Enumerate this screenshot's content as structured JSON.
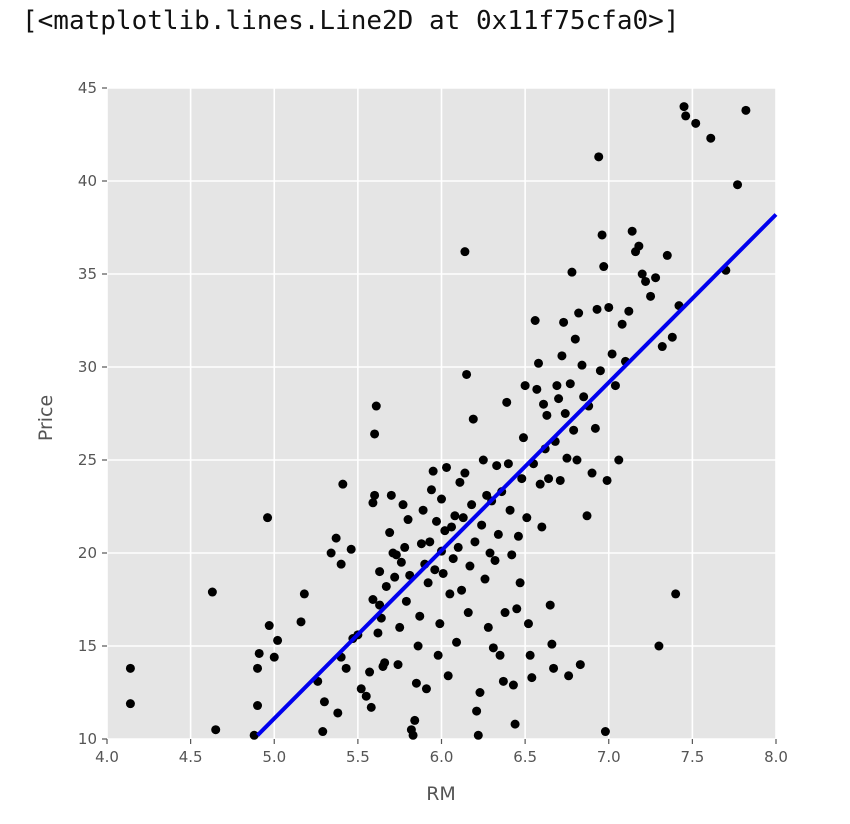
{
  "output": {
    "repr": "[<matplotlib.lines.Line2D at 0x11f75cfa0>]"
  },
  "chart_data": {
    "type": "scatter",
    "title": "",
    "xlabel": "RM",
    "ylabel": "Price",
    "xlim": [
      4.0,
      8.0
    ],
    "ylim": [
      10,
      45
    ],
    "xticks": [
      4.0,
      4.5,
      5.0,
      5.5,
      6.0,
      6.5,
      7.0,
      7.5,
      8.0
    ],
    "xtick_labels": [
      "4.0",
      "4.5",
      "5.0",
      "5.5",
      "6.0",
      "6.5",
      "7.0",
      "7.5",
      "8.0"
    ],
    "yticks": [
      10,
      15,
      20,
      25,
      30,
      35,
      40,
      45
    ],
    "ytick_labels": [
      "10",
      "15",
      "20",
      "25",
      "30",
      "35",
      "40",
      "45"
    ],
    "grid": true,
    "style": "ggplot",
    "colors": {
      "points": "#000000",
      "fit_line": "#0000ee",
      "background": "#e5e5e5",
      "grid": "#ffffff"
    },
    "fit_line": {
      "x": [
        4.9,
        8.0
      ],
      "y": [
        10.2,
        38.2
      ]
    },
    "points": [
      [
        4.14,
        13.8
      ],
      [
        4.14,
        11.9
      ],
      [
        4.63,
        17.9
      ],
      [
        4.65,
        10.5
      ],
      [
        4.88,
        10.2
      ],
      [
        4.9,
        13.8
      ],
      [
        4.9,
        11.8
      ],
      [
        4.91,
        14.6
      ],
      [
        4.96,
        21.9
      ],
      [
        4.97,
        16.1
      ],
      [
        5.0,
        14.4
      ],
      [
        5.02,
        15.3
      ],
      [
        5.16,
        16.3
      ],
      [
        5.18,
        17.8
      ],
      [
        5.26,
        13.1
      ],
      [
        5.29,
        10.4
      ],
      [
        5.3,
        12.0
      ],
      [
        5.34,
        20.0
      ],
      [
        5.37,
        20.8
      ],
      [
        5.38,
        11.4
      ],
      [
        5.4,
        19.4
      ],
      [
        5.4,
        14.4
      ],
      [
        5.41,
        23.7
      ],
      [
        5.43,
        13.8
      ],
      [
        5.46,
        20.2
      ],
      [
        5.47,
        15.4
      ],
      [
        5.5,
        15.6
      ],
      [
        5.52,
        12.7
      ],
      [
        5.55,
        12.3
      ],
      [
        5.57,
        13.6
      ],
      [
        5.58,
        11.7
      ],
      [
        5.59,
        17.5
      ],
      [
        5.59,
        22.7
      ],
      [
        5.6,
        23.1
      ],
      [
        5.6,
        26.4
      ],
      [
        5.61,
        27.9
      ],
      [
        5.62,
        15.7
      ],
      [
        5.63,
        17.2
      ],
      [
        5.63,
        19.0
      ],
      [
        5.64,
        16.5
      ],
      [
        5.65,
        13.9
      ],
      [
        5.66,
        14.1
      ],
      [
        5.67,
        18.2
      ],
      [
        5.69,
        21.1
      ],
      [
        5.7,
        23.1
      ],
      [
        5.71,
        20.0
      ],
      [
        5.72,
        18.7
      ],
      [
        5.73,
        19.9
      ],
      [
        5.74,
        14.0
      ],
      [
        5.75,
        16.0
      ],
      [
        5.76,
        19.5
      ],
      [
        5.77,
        22.6
      ],
      [
        5.78,
        20.3
      ],
      [
        5.79,
        17.4
      ],
      [
        5.8,
        21.8
      ],
      [
        5.81,
        18.8
      ],
      [
        5.82,
        10.5
      ],
      [
        5.83,
        10.2
      ],
      [
        5.84,
        11.0
      ],
      [
        5.85,
        13.0
      ],
      [
        5.86,
        15.0
      ],
      [
        5.87,
        16.6
      ],
      [
        5.88,
        20.5
      ],
      [
        5.89,
        22.3
      ],
      [
        5.9,
        19.4
      ],
      [
        5.91,
        12.7
      ],
      [
        5.92,
        18.4
      ],
      [
        5.93,
        20.6
      ],
      [
        5.94,
        23.4
      ],
      [
        5.95,
        24.4
      ],
      [
        5.96,
        19.1
      ],
      [
        5.97,
        21.7
      ],
      [
        5.98,
        14.5
      ],
      [
        5.99,
        16.2
      ],
      [
        6.0,
        20.1
      ],
      [
        6.0,
        22.9
      ],
      [
        6.01,
        18.9
      ],
      [
        6.02,
        21.2
      ],
      [
        6.03,
        24.6
      ],
      [
        6.04,
        13.4
      ],
      [
        6.05,
        17.8
      ],
      [
        6.06,
        21.4
      ],
      [
        6.07,
        19.7
      ],
      [
        6.08,
        22.0
      ],
      [
        6.09,
        15.2
      ],
      [
        6.1,
        20.3
      ],
      [
        6.11,
        23.8
      ],
      [
        6.12,
        18.0
      ],
      [
        6.13,
        21.9
      ],
      [
        6.14,
        24.3
      ],
      [
        6.14,
        36.2
      ],
      [
        6.15,
        29.6
      ],
      [
        6.16,
        16.8
      ],
      [
        6.17,
        19.3
      ],
      [
        6.18,
        22.6
      ],
      [
        6.19,
        27.2
      ],
      [
        6.2,
        20.6
      ],
      [
        6.21,
        11.5
      ],
      [
        6.22,
        10.2
      ],
      [
        6.23,
        12.5
      ],
      [
        6.24,
        21.5
      ],
      [
        6.25,
        25.0
      ],
      [
        6.26,
        18.6
      ],
      [
        6.27,
        23.1
      ],
      [
        6.28,
        16.0
      ],
      [
        6.29,
        20.0
      ],
      [
        6.3,
        22.8
      ],
      [
        6.31,
        14.9
      ],
      [
        6.32,
        19.6
      ],
      [
        6.33,
        24.7
      ],
      [
        6.34,
        21.0
      ],
      [
        6.35,
        14.5
      ],
      [
        6.36,
        23.3
      ],
      [
        6.37,
        13.1
      ],
      [
        6.38,
        16.8
      ],
      [
        6.39,
        28.1
      ],
      [
        6.4,
        24.8
      ],
      [
        6.41,
        22.3
      ],
      [
        6.42,
        19.9
      ],
      [
        6.43,
        12.9
      ],
      [
        6.44,
        10.8
      ],
      [
        6.45,
        17.0
      ],
      [
        6.46,
        20.9
      ],
      [
        6.47,
        18.4
      ],
      [
        6.48,
        24.0
      ],
      [
        6.49,
        26.2
      ],
      [
        6.5,
        29.0
      ],
      [
        6.51,
        21.9
      ],
      [
        6.52,
        16.2
      ],
      [
        6.53,
        14.5
      ],
      [
        6.54,
        13.3
      ],
      [
        6.55,
        24.8
      ],
      [
        6.56,
        32.5
      ],
      [
        6.57,
        28.8
      ],
      [
        6.58,
        30.2
      ],
      [
        6.59,
        23.7
      ],
      [
        6.6,
        21.4
      ],
      [
        6.61,
        28.0
      ],
      [
        6.62,
        25.6
      ],
      [
        6.63,
        27.4
      ],
      [
        6.64,
        24.0
      ],
      [
        6.65,
        17.2
      ],
      [
        6.66,
        15.1
      ],
      [
        6.67,
        13.8
      ],
      [
        6.68,
        26.0
      ],
      [
        6.69,
        29.0
      ],
      [
        6.7,
        28.3
      ],
      [
        6.71,
        23.9
      ],
      [
        6.72,
        30.6
      ],
      [
        6.73,
        32.4
      ],
      [
        6.74,
        27.5
      ],
      [
        6.75,
        25.1
      ],
      [
        6.76,
        13.4
      ],
      [
        6.77,
        29.1
      ],
      [
        6.78,
        35.1
      ],
      [
        6.79,
        26.6
      ],
      [
        6.8,
        31.5
      ],
      [
        6.81,
        25.0
      ],
      [
        6.82,
        32.9
      ],
      [
        6.83,
        14.0
      ],
      [
        6.84,
        30.1
      ],
      [
        6.85,
        28.4
      ],
      [
        6.87,
        22.0
      ],
      [
        6.88,
        27.9
      ],
      [
        6.9,
        24.3
      ],
      [
        6.92,
        26.7
      ],
      [
        6.93,
        33.1
      ],
      [
        6.94,
        41.3
      ],
      [
        6.95,
        29.8
      ],
      [
        6.96,
        37.1
      ],
      [
        6.97,
        35.4
      ],
      [
        6.98,
        10.4
      ],
      [
        6.99,
        23.9
      ],
      [
        7.0,
        33.2
      ],
      [
        7.02,
        30.7
      ],
      [
        7.04,
        29.0
      ],
      [
        7.06,
        25.0
      ],
      [
        7.08,
        32.3
      ],
      [
        7.1,
        30.3
      ],
      [
        7.12,
        33.0
      ],
      [
        7.14,
        37.3
      ],
      [
        7.16,
        36.2
      ],
      [
        7.18,
        36.5
      ],
      [
        7.2,
        35.0
      ],
      [
        7.22,
        34.6
      ],
      [
        7.25,
        33.8
      ],
      [
        7.28,
        34.8
      ],
      [
        7.3,
        15.0
      ],
      [
        7.32,
        31.1
      ],
      [
        7.35,
        36.0
      ],
      [
        7.38,
        31.6
      ],
      [
        7.4,
        17.8
      ],
      [
        7.42,
        33.3
      ],
      [
        7.45,
        44.0
      ],
      [
        7.46,
        43.5
      ],
      [
        7.52,
        43.1
      ],
      [
        7.61,
        42.3
      ],
      [
        7.7,
        35.2
      ],
      [
        7.77,
        39.8
      ],
      [
        7.82,
        43.8
      ]
    ]
  }
}
